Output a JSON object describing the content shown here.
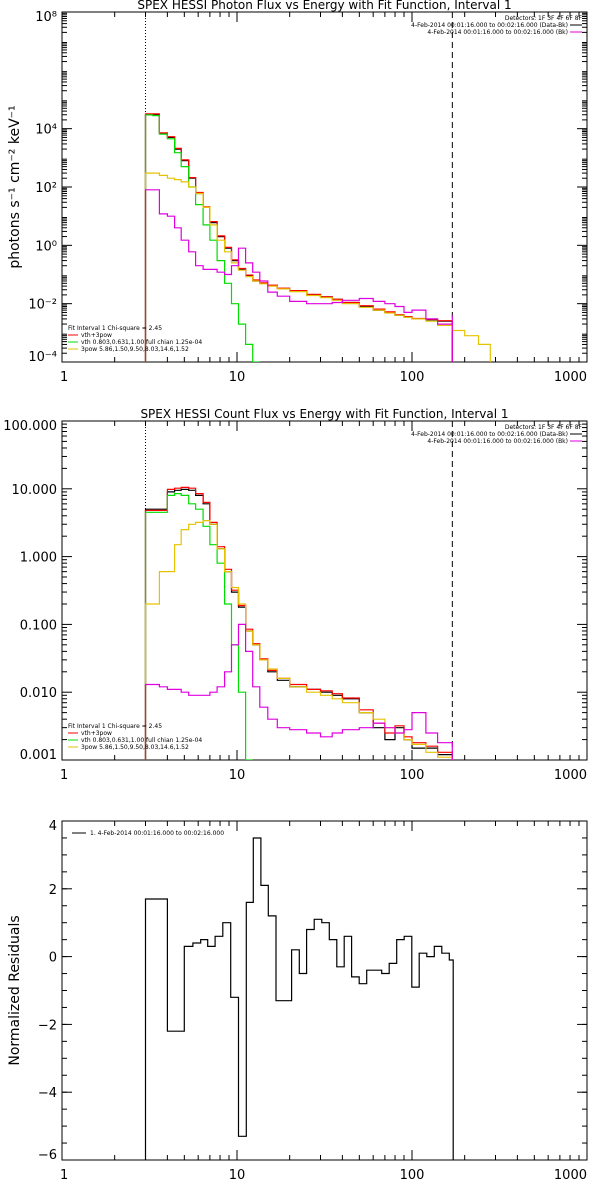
{
  "chart_data": [
    {
      "type": "line",
      "title": "SPEX HESSI Photon Flux vs Energy with Fit Function, Interval 1",
      "ylabel": "photons s⁻¹ cm⁻² keV⁻¹",
      "xscale": "log",
      "yscale": "log",
      "xlim": [
        1,
        1000
      ],
      "ylim": [
        0.0001,
        100000000
      ],
      "xticks": [
        1,
        10,
        100,
        1000
      ],
      "xticklabels": [
        "1",
        "10",
        "100",
        "1000"
      ],
      "yticks": [
        0.0001,
        0.01,
        1,
        100,
        10000,
        100000000
      ],
      "yticklabels": [
        "10⁻⁴",
        "10⁻²",
        "10⁰",
        "10²",
        "10⁴",
        "10⁸"
      ],
      "vlines": [
        {
          "x": 3,
          "style": "dotted"
        },
        {
          "x": 170,
          "style": "dashed"
        }
      ],
      "header": {
        "detectors": "Detectors: 1F 3F 4F 6F 8F",
        "line1": "4-Feb-2014 00:01:16.000 to 00:02:16.000 (Data-Bk)",
        "line2": "4-Feb-2014 00:01:16.000 to 00:02:16.000 (Bk)"
      },
      "fit": {
        "heading": "Fit Interval 1    Chi-square = 2.45",
        "lines": [
          "vth+3pow",
          "vth 0.803,0.631,1.00  full chian 1.25e-04",
          "3pow 5.86,1.50,9.50,8.03,14.6,1.52"
        ]
      },
      "series": [
        {
          "name": "black",
          "color": "#000000",
          "x": [
            3,
            3.3,
            3.6,
            4,
            4.4,
            4.8,
            5.3,
            5.8,
            6.4,
            7,
            7.7,
            8.5,
            9.3,
            10.2,
            11.2,
            12.3,
            13.5,
            15,
            17,
            20,
            25,
            30,
            35,
            40,
            50,
            60,
            70,
            80,
            90,
            100,
            120,
            140,
            170
          ],
          "y": [
            30000,
            30000,
            7000,
            5000,
            2000,
            800,
            200,
            60,
            20,
            6,
            2,
            0.8,
            0.3,
            0.15,
            0.09,
            0.06,
            0.05,
            0.042,
            0.033,
            0.027,
            0.02,
            0.017,
            0.014,
            0.011,
            0.008,
            0.006,
            0.005,
            0.004,
            0.0035,
            0.003,
            0.0028,
            0.0025,
            0.0025
          ]
        },
        {
          "name": "red",
          "color": "#ff0000",
          "x": [
            3,
            3.3,
            3.6,
            4,
            4.4,
            4.8,
            5.3,
            5.8,
            6.4,
            7,
            7.7,
            8.5,
            9.3,
            10.2,
            11.2,
            12.3,
            13.5,
            15,
            17,
            20,
            25,
            30,
            35,
            40,
            50,
            60,
            70,
            80,
            90,
            100,
            120,
            140,
            170
          ],
          "y": [
            32000,
            32000,
            7200,
            5300,
            2100,
            850,
            210,
            65,
            21,
            6.5,
            2.1,
            0.85,
            0.32,
            0.16,
            0.095,
            0.065,
            0.052,
            0.043,
            0.034,
            0.028,
            0.021,
            0.017,
            0.014,
            0.011,
            0.0085,
            0.0065,
            0.0052,
            0.0042,
            0.0036,
            0.0031,
            0.0029,
            0.0026,
            0.0026
          ]
        },
        {
          "name": "green",
          "color": "#00dd00",
          "x": [
            3,
            3.3,
            3.6,
            4,
            4.4,
            4.8,
            5.3,
            5.8,
            6.4,
            7,
            7.7,
            8.5,
            9.3,
            10.2,
            11.2,
            12.3,
            13.5
          ],
          "y": [
            30000,
            28000,
            6500,
            4500,
            1500,
            500,
            100,
            25,
            5,
            1.5,
            0.3,
            0.05,
            0.01,
            0.002,
            0.0004,
            0.0001,
            0.0001
          ]
        },
        {
          "name": "yellow",
          "color": "#e6c300",
          "x": [
            3,
            3.3,
            3.6,
            4,
            4.4,
            4.8,
            5.3,
            5.8,
            6.4,
            7,
            7.7,
            8.5,
            9.3,
            10.2,
            11.2,
            12.3,
            13.5,
            15,
            17,
            20,
            25,
            30,
            35,
            40,
            50,
            60,
            70,
            80,
            90,
            100,
            120,
            140,
            170,
            200,
            240,
            280
          ],
          "y": [
            300,
            300,
            250,
            200,
            180,
            150,
            100,
            60,
            20,
            5,
            1.5,
            0.6,
            0.25,
            0.14,
            0.085,
            0.06,
            0.048,
            0.04,
            0.032,
            0.026,
            0.019,
            0.016,
            0.013,
            0.01,
            0.0075,
            0.006,
            0.0048,
            0.004,
            0.0034,
            0.003,
            0.0025,
            0.0018,
            0.0012,
            0.0008,
            0.0004,
            0.0001
          ]
        },
        {
          "name": "magenta",
          "color": "#e000e0",
          "x": [
            3,
            3.3,
            3.6,
            4,
            4.4,
            4.8,
            5.3,
            5.8,
            6.4,
            7,
            7.7,
            8.5,
            9.3,
            10.2,
            11.2,
            12.3,
            13.5,
            15,
            17,
            20,
            25,
            30,
            35,
            40,
            50,
            60,
            70,
            80,
            90,
            100,
            120,
            140,
            170
          ],
          "y": [
            80,
            80,
            12,
            10,
            4,
            1.5,
            0.6,
            0.2,
            0.15,
            0.15,
            0.12,
            0.1,
            0.2,
            0.8,
            0.25,
            0.12,
            0.06,
            0.025,
            0.018,
            0.012,
            0.01,
            0.01,
            0.011,
            0.013,
            0.015,
            0.012,
            0.01,
            0.008,
            0.005,
            0.006,
            0.003,
            0.002,
            0.004
          ]
        }
      ]
    },
    {
      "type": "line",
      "title": "SPEX HESSI Count Flux vs Energy with Fit Function, Interval 1",
      "ylabel": "",
      "xscale": "log",
      "yscale": "log",
      "xlim": [
        1,
        1000
      ],
      "ylim": [
        0.001,
        100
      ],
      "xticks": [
        1,
        10,
        100,
        1000
      ],
      "xticklabels": [
        "1",
        "10",
        "100",
        "1000"
      ],
      "yticks": [
        0.001,
        0.01,
        0.1,
        1,
        10,
        100
      ],
      "yticklabels": [
        "0.001",
        "0.010",
        "0.100",
        "1.000",
        "10.000",
        "100.000"
      ],
      "vlines": [
        {
          "x": 3,
          "style": "dotted"
        },
        {
          "x": 170,
          "style": "dashed"
        }
      ],
      "header": {
        "detectors": "Detectors: 1F 3F 4F 6F 8F",
        "line1": "4-Feb-2014 00:01:16.000 to 00:02:16.000 (Data-Bk)",
        "line2": "4-Feb-2014 00:01:16.000 to 00:02:16.000 (Bk)"
      },
      "fit": {
        "heading": "Fit Interval 1    Chi-square = 2.45",
        "lines": [
          "vth+3pow",
          "vth 0.803,0.631,1.00  full chian 1.25e-04",
          "3pow 5.86,1.50,9.50,8.03,14.6,1.52"
        ]
      },
      "series": [
        {
          "name": "black",
          "color": "#000000",
          "x": [
            3,
            3.3,
            3.6,
            4,
            4.4,
            4.8,
            5.3,
            5.8,
            6.4,
            7,
            7.7,
            8.5,
            9.3,
            10.2,
            11.2,
            12.3,
            13.5,
            15,
            17,
            20,
            25,
            30,
            35,
            40,
            50,
            60,
            70,
            80,
            90,
            100,
            120,
            140,
            170
          ],
          "y": [
            5,
            5,
            5,
            9,
            9.5,
            9.8,
            9.5,
            8,
            6,
            3,
            1.3,
            0.6,
            0.3,
            0.18,
            0.08,
            0.05,
            0.03,
            0.02,
            0.015,
            0.012,
            0.011,
            0.01,
            0.009,
            0.008,
            0.005,
            0.003,
            0.002,
            0.003,
            0.002,
            0.0015,
            0.0015,
            0.0012,
            0.0012
          ]
        },
        {
          "name": "red",
          "color": "#ff0000",
          "x": [
            3,
            3.3,
            3.6,
            4,
            4.4,
            4.8,
            5.3,
            5.8,
            6.4,
            7,
            7.7,
            8.5,
            9.3,
            10.2,
            11.2,
            12.3,
            13.5,
            15,
            17,
            20,
            25,
            30,
            35,
            40,
            50,
            60,
            70,
            80,
            90,
            100,
            120,
            140,
            170
          ],
          "y": [
            4.8,
            4.8,
            4.8,
            9.8,
            10.2,
            10.5,
            10.2,
            8.5,
            6.3,
            3.2,
            1.4,
            0.65,
            0.32,
            0.19,
            0.085,
            0.052,
            0.031,
            0.021,
            0.016,
            0.013,
            0.011,
            0.0105,
            0.0095,
            0.0082,
            0.0055,
            0.0035,
            0.0025,
            0.0032,
            0.0022,
            0.0018,
            0.0016,
            0.0013,
            0.0013
          ]
        },
        {
          "name": "green",
          "color": "#00dd00",
          "x": [
            3,
            3.3,
            3.6,
            4,
            4.4,
            4.8,
            5.3,
            5.8,
            6.4,
            7,
            7.7,
            8.5,
            9.3,
            10.2,
            11.2,
            12.3
          ],
          "y": [
            4.5,
            4.5,
            4.5,
            8,
            8.5,
            8,
            6,
            5,
            2.8,
            1.5,
            0.8,
            0.2,
            0.05,
            0.01,
            0.001,
            0.001
          ]
        },
        {
          "name": "yellow",
          "color": "#e6c300",
          "x": [
            3,
            3.3,
            3.6,
            4,
            4.4,
            4.8,
            5.3,
            5.8,
            6.4,
            7,
            7.7,
            8.5,
            9.3,
            10.2,
            11.2,
            12.3,
            13.5,
            15,
            17,
            20,
            25,
            30,
            35,
            40,
            50,
            60,
            70,
            80,
            90,
            100,
            120,
            140,
            170
          ],
          "y": [
            0.2,
            0.2,
            0.6,
            0.6,
            1.5,
            2.5,
            3,
            3.2,
            3.4,
            3,
            1.3,
            0.6,
            0.35,
            0.2,
            0.08,
            0.05,
            0.03,
            0.022,
            0.016,
            0.012,
            0.01,
            0.009,
            0.008,
            0.007,
            0.005,
            0.004,
            0.003,
            0.0025,
            0.002,
            0.0017,
            0.0013,
            0.0011,
            0.001
          ]
        },
        {
          "name": "magenta",
          "color": "#e000e0",
          "x": [
            3,
            3.3,
            3.6,
            4,
            4.4,
            4.8,
            5.3,
            5.8,
            6.4,
            7,
            7.7,
            8.5,
            9.3,
            10.2,
            11.2,
            12.3,
            13.5,
            15,
            17,
            20,
            25,
            30,
            35,
            40,
            50,
            60,
            70,
            80,
            90,
            100,
            120,
            140,
            170
          ],
          "y": [
            0.013,
            0.013,
            0.012,
            0.011,
            0.011,
            0.01,
            0.009,
            0.009,
            0.009,
            0.01,
            0.012,
            0.02,
            0.05,
            0.1,
            0.04,
            0.012,
            0.006,
            0.004,
            0.003,
            0.0028,
            0.0025,
            0.0022,
            0.0025,
            0.0028,
            0.003,
            0.0035,
            0.003,
            0.0025,
            0.0028,
            0.005,
            0.0025,
            0.0018,
            0.0012
          ]
        }
      ]
    },
    {
      "type": "line",
      "title": "",
      "ylabel": "Normalized Residuals",
      "xscale": "log",
      "yscale": "linear",
      "xlim": [
        1,
        1000
      ],
      "ylim": [
        -6,
        4
      ],
      "xticks": [
        1,
        10,
        100,
        1000
      ],
      "xticklabels": [
        "1",
        "10",
        "100",
        "1000"
      ],
      "yticks": [
        -6,
        -4,
        -2,
        0,
        2,
        4
      ],
      "yticklabels": [
        "−6",
        "−4",
        "−2",
        "0",
        "2",
        "4"
      ],
      "legend": "1.  4-Feb-2014 00:01:16.000 to 00:02:16.000",
      "series": [
        {
          "name": "residuals",
          "color": "#000000",
          "edges": [
            3,
            4,
            5,
            5.6,
            6.2,
            6.8,
            7.5,
            8.3,
            9.2,
            10.2,
            11.3,
            12.4,
            13.7,
            15.1,
            16.7,
            18.5,
            20.5,
            22.7,
            25,
            27.6,
            30.5,
            33.7,
            37.2,
            41,
            45.2,
            49.9,
            55.1,
            60.8,
            67.1,
            74.1,
            81.8,
            90.3,
            99.7,
            110,
            121.5,
            134.1,
            148,
            163.4,
            172
          ],
          "values": [
            1.7,
            -2.2,
            0.3,
            0.4,
            0.5,
            0.3,
            0.6,
            1.0,
            -1.2,
            -5.3,
            1.6,
            3.5,
            2.1,
            1.2,
            -1.3,
            -1.3,
            0.2,
            -0.5,
            0.8,
            1.1,
            1.0,
            0.5,
            -0.3,
            0.6,
            -0.6,
            -0.8,
            -0.4,
            -0.4,
            -0.5,
            -0.2,
            0.5,
            0.6,
            -0.9,
            0.1,
            0.0,
            0.3,
            0.1,
            -0.1
          ]
        }
      ]
    }
  ]
}
